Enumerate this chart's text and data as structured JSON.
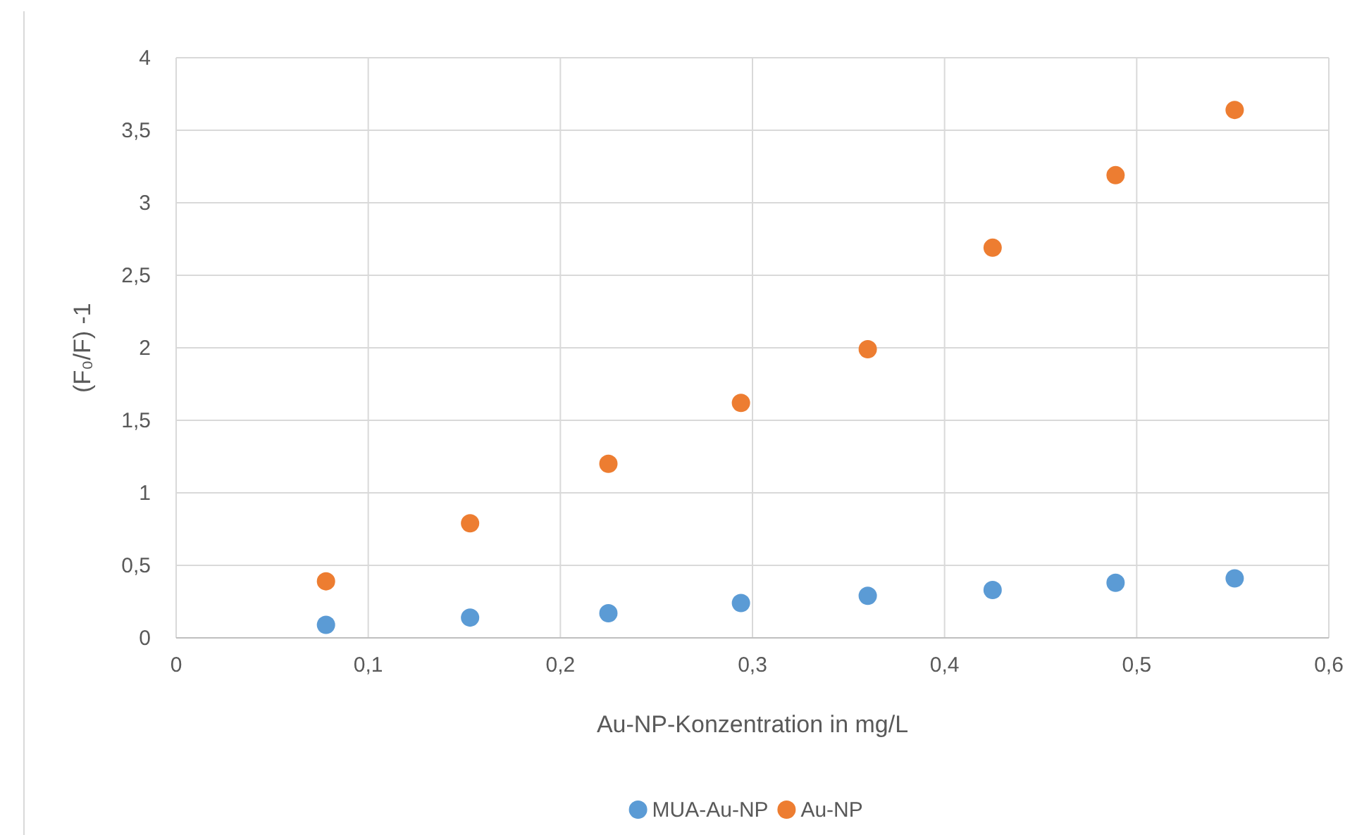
{
  "chart_data": {
    "type": "scatter",
    "xlabel": "Au-NP-Konzentration in mg/L",
    "ylabel": "(F₀/F) -1",
    "xlim": [
      0,
      0.6
    ],
    "xticks": [
      {
        "value": 0,
        "label": "0"
      },
      {
        "value": 0.1,
        "label": "0,1"
      },
      {
        "value": 0.2,
        "label": "0,2"
      },
      {
        "value": 0.3,
        "label": "0,3"
      },
      {
        "value": 0.4,
        "label": "0,4"
      },
      {
        "value": 0.5,
        "label": "0,5"
      },
      {
        "value": 0.6,
        "label": "0,6"
      }
    ],
    "ylim": [
      0,
      4
    ],
    "yticks": [
      {
        "value": 0,
        "label": "0"
      },
      {
        "value": 0.5,
        "label": "0,5"
      },
      {
        "value": 1,
        "label": "1"
      },
      {
        "value": 1.5,
        "label": "1,5"
      },
      {
        "value": 2,
        "label": "2"
      },
      {
        "value": 2.5,
        "label": "2,5"
      },
      {
        "value": 3,
        "label": "3"
      },
      {
        "value": 3.5,
        "label": "3,5"
      },
      {
        "value": 4,
        "label": "4"
      }
    ],
    "x": [
      0.078,
      0.153,
      0.225,
      0.294,
      0.36,
      0.425,
      0.489,
      0.551
    ],
    "series": [
      {
        "name": "MUA-Au-NP",
        "color": "#5b9bd5",
        "values": [
          0.09,
          0.14,
          0.17,
          0.24,
          0.29,
          0.33,
          0.38,
          0.41
        ]
      },
      {
        "name": "Au-NP",
        "color": "#ed7d31",
        "values": [
          0.39,
          0.79,
          1.2,
          1.62,
          1.99,
          2.69,
          3.19,
          3.64
        ]
      }
    ],
    "grid": true,
    "legend": "bottom",
    "marker": "circle"
  }
}
